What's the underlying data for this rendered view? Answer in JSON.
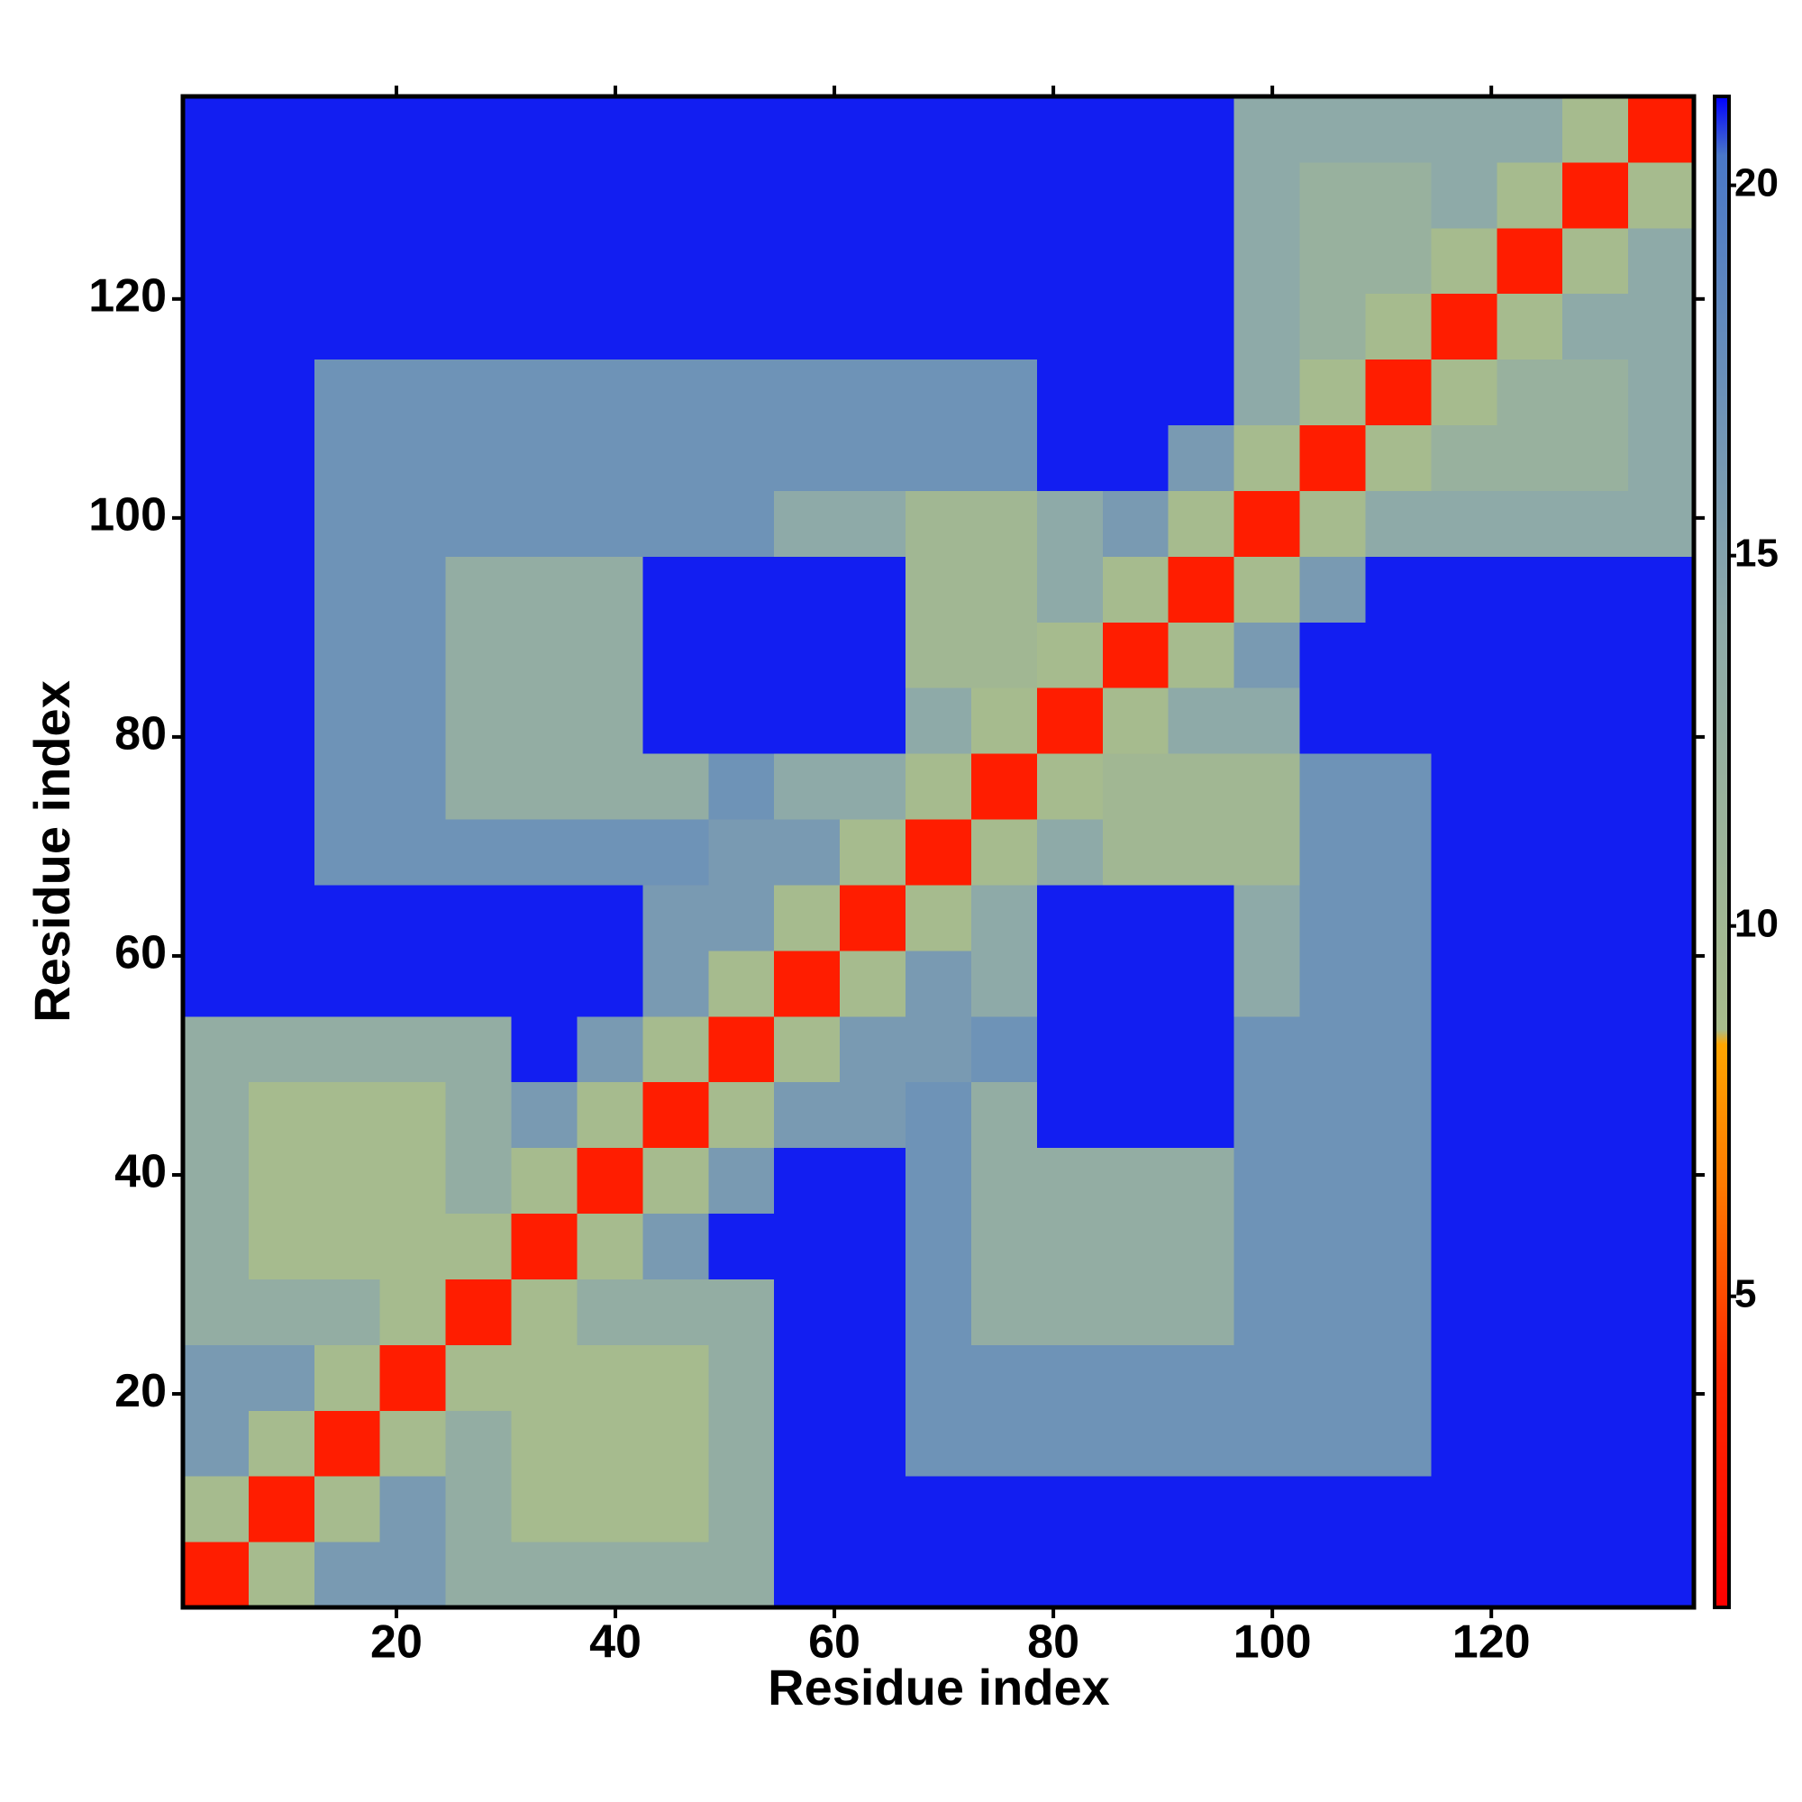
{
  "chart_data": {
    "type": "heatmap",
    "xlabel": "Residue index",
    "ylabel": "Residue index",
    "xlim": [
      0.5,
      138.5
    ],
    "ylim": [
      0.5,
      138.5
    ],
    "xticks": [
      20,
      40,
      60,
      80,
      100,
      120
    ],
    "yticks": [
      20,
      40,
      60,
      80,
      100,
      120
    ],
    "xbins": [
      0.5,
      6.5,
      12.5,
      18.5,
      24.5,
      30.5,
      36.5,
      42.5,
      48.5,
      54.5,
      60.5,
      66.5,
      72.5,
      78.5,
      84.5,
      90.5,
      96.5,
      102.5,
      108.5,
      114.5,
      120.5,
      126.5,
      132.5,
      138.5
    ],
    "ybins": [
      0.5,
      6.5,
      12.5,
      18.5,
      24.5,
      30.5,
      36.5,
      42.5,
      48.5,
      54.5,
      60.5,
      66.5,
      72.5,
      78.5,
      84.5,
      90.5,
      96.5,
      102.5,
      108.5,
      114.5,
      120.5,
      126.5,
      132.5,
      138.5
    ],
    "zlim": [
      0.8,
      21.2
    ],
    "zticks": [
      5,
      10,
      15,
      20
    ],
    "colorscale": [
      [
        0.8,
        "#ff0000"
      ],
      [
        4,
        "#ff2a00"
      ],
      [
        6.5,
        "#ff7a00"
      ],
      [
        8.4,
        "#ffa500"
      ],
      [
        8.6,
        "#a8bc8c"
      ],
      [
        14,
        "#8eaaa8"
      ],
      [
        20.4,
        "#4a78c8"
      ],
      [
        21.2,
        "#0000ff"
      ]
    ],
    "z": [
      [
        3,
        9,
        16,
        16,
        13,
        13,
        13,
        13,
        13,
        21,
        21,
        21,
        21,
        21,
        21,
        21,
        21,
        21,
        21,
        21,
        21,
        21,
        21
      ],
      [
        9,
        3,
        9,
        16,
        13,
        9,
        9,
        9,
        13,
        21,
        21,
        21,
        21,
        21,
        21,
        21,
        21,
        21,
        21,
        21,
        21,
        21,
        21
      ],
      [
        16,
        9,
        3,
        9,
        13,
        9,
        9,
        9,
        13,
        21,
        21,
        17,
        17,
        17,
        17,
        17,
        17,
        17,
        17,
        21,
        21,
        21,
        21
      ],
      [
        16,
        16,
        9,
        3,
        9,
        9,
        9,
        9,
        13,
        21,
        21,
        17,
        17,
        17,
        17,
        17,
        17,
        17,
        17,
        21,
        21,
        21,
        21
      ],
      [
        13,
        13,
        13,
        9,
        3,
        9,
        13,
        13,
        13,
        21,
        21,
        17,
        13,
        13,
        13,
        13,
        17,
        17,
        17,
        21,
        21,
        21,
        21
      ],
      [
        13,
        9,
        9,
        9,
        9,
        3,
        9,
        16,
        21,
        21,
        21,
        17,
        13,
        13,
        13,
        13,
        17,
        17,
        17,
        21,
        21,
        21,
        21
      ],
      [
        13,
        9,
        9,
        9,
        13,
        9,
        3,
        9,
        16,
        21,
        21,
        17,
        13,
        13,
        13,
        13,
        17,
        17,
        17,
        21,
        21,
        21,
        21
      ],
      [
        13,
        9,
        9,
        9,
        13,
        16,
        9,
        3,
        9,
        16,
        16,
        17,
        13,
        21,
        21,
        21,
        17,
        17,
        17,
        21,
        21,
        21,
        21
      ],
      [
        13,
        13,
        13,
        13,
        13,
        21,
        16,
        9,
        3,
        9,
        16,
        16,
        17,
        21,
        21,
        21,
        17,
        17,
        17,
        21,
        21,
        21,
        21
      ],
      [
        21,
        21,
        21,
        21,
        21,
        21,
        21,
        16,
        9,
        3,
        9,
        16,
        14,
        21,
        21,
        21,
        14,
        17,
        17,
        21,
        21,
        21,
        21
      ],
      [
        21,
        21,
        21,
        21,
        21,
        21,
        21,
        16,
        16,
        9,
        3,
        9,
        14,
        21,
        21,
        21,
        14,
        17,
        17,
        21,
        21,
        21,
        21
      ],
      [
        21,
        21,
        17,
        17,
        17,
        17,
        17,
        17,
        16,
        16,
        9,
        3,
        9,
        14,
        10,
        10,
        10,
        17,
        17,
        21,
        21,
        21,
        21
      ],
      [
        21,
        21,
        17,
        17,
        13,
        13,
        13,
        13,
        17,
        14,
        14,
        9,
        3,
        9,
        10,
        10,
        10,
        17,
        17,
        21,
        21,
        21,
        21
      ],
      [
        21,
        21,
        17,
        17,
        13,
        13,
        13,
        21,
        21,
        21,
        21,
        14,
        9,
        3,
        9,
        14,
        14,
        21,
        21,
        21,
        21,
        21,
        21
      ],
      [
        21,
        21,
        17,
        17,
        13,
        13,
        13,
        21,
        21,
        21,
        21,
        10,
        10,
        9,
        3,
        9,
        16,
        21,
        21,
        21,
        21,
        21,
        21
      ],
      [
        21,
        21,
        17,
        17,
        13,
        13,
        13,
        21,
        21,
        21,
        21,
        10,
        10,
        14,
        9,
        3,
        9,
        16,
        21,
        21,
        21,
        21,
        21
      ],
      [
        21,
        21,
        17,
        17,
        17,
        17,
        17,
        17,
        17,
        14,
        14,
        10,
        10,
        14,
        16,
        9,
        3,
        9,
        14,
        14,
        14,
        14,
        14
      ],
      [
        21,
        21,
        17,
        17,
        17,
        17,
        17,
        17,
        17,
        17,
        17,
        17,
        17,
        21,
        21,
        16,
        9,
        3,
        9,
        12,
        12,
        12,
        14
      ],
      [
        21,
        21,
        17,
        17,
        17,
        17,
        17,
        17,
        17,
        17,
        17,
        17,
        17,
        21,
        21,
        21,
        14,
        9,
        3,
        9,
        12,
        12,
        14
      ],
      [
        21,
        21,
        21,
        21,
        21,
        21,
        21,
        21,
        21,
        21,
        21,
        21,
        21,
        21,
        21,
        21,
        14,
        12,
        9,
        3,
        9,
        14,
        14
      ],
      [
        21,
        21,
        21,
        21,
        21,
        21,
        21,
        21,
        21,
        21,
        21,
        21,
        21,
        21,
        21,
        21,
        14,
        12,
        12,
        9,
        3,
        9,
        14
      ],
      [
        21,
        21,
        21,
        21,
        21,
        21,
        21,
        21,
        21,
        21,
        21,
        21,
        21,
        21,
        21,
        21,
        14,
        12,
        12,
        14,
        9,
        3,
        9
      ],
      [
        21,
        21,
        21,
        21,
        21,
        21,
        21,
        21,
        21,
        21,
        21,
        21,
        21,
        21,
        21,
        21,
        14,
        14,
        14,
        14,
        14,
        9,
        3
      ]
    ]
  }
}
